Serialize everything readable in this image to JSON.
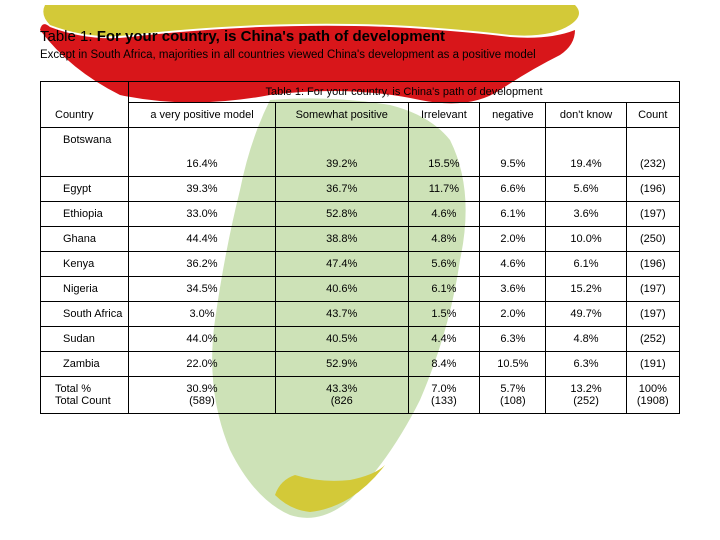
{
  "title_prefix": "Table 1:",
  "title_main": "For your country, is China's path of development",
  "subtitle": "Except in South Africa, majorities in all countries viewed China's development as a positive model",
  "table_caption": "Table 1: For your country, is China's path of development",
  "country_header": "Country",
  "columns": [
    "a very positive model",
    "Somewhat positive",
    "Irrelevant",
    "negative",
    "don't know",
    "Count"
  ],
  "rows": [
    {
      "country": "Botswana",
      "indent": true,
      "v": [
        "16.4%",
        "39.2%",
        "15.5%",
        "9.5%",
        "19.4%",
        "(232)"
      ]
    },
    {
      "country": "Egypt",
      "indent": true,
      "v": [
        "39.3%",
        "36.7%",
        "11.7%",
        "6.6%",
        "5.6%",
        "(196)"
      ]
    },
    {
      "country": "Ethiopia",
      "indent": true,
      "v": [
        "33.0%",
        "52.8%",
        "4.6%",
        "6.1%",
        "3.6%",
        "(197)"
      ]
    },
    {
      "country": "Ghana",
      "indent": true,
      "v": [
        "44.4%",
        "38.8%",
        "4.8%",
        "2.0%",
        "10.0%",
        "(250)"
      ]
    },
    {
      "country": "Kenya",
      "indent": true,
      "v": [
        "36.2%",
        "47.4%",
        "5.6%",
        "4.6%",
        "6.1%",
        "(196)"
      ]
    },
    {
      "country": "Nigeria",
      "indent": true,
      "v": [
        "34.5%",
        "40.6%",
        "6.1%",
        "3.6%",
        "15.2%",
        "(197)"
      ]
    },
    {
      "country": "South Africa",
      "indent": true,
      "v": [
        "3.0%",
        "43.7%",
        "1.5%",
        "2.0%",
        "49.7%",
        "(197)"
      ]
    },
    {
      "country": "Sudan",
      "indent": true,
      "v": [
        "44.0%",
        "40.5%",
        "4.4%",
        "6.3%",
        "4.8%",
        "(252)"
      ]
    },
    {
      "country": "Zambia",
      "indent": true,
      "v": [
        "22.0%",
        "52.9%",
        "8.4%",
        "10.5%",
        "6.3%",
        "(191)"
      ]
    }
  ],
  "total_label1": "Total %",
  "total_label2": "Total Count",
  "totals_pct": [
    "30.9%",
    "43.3%",
    "7.0%",
    "5.7%",
    "13.2%",
    "100%"
  ],
  "totals_count": [
    "(589)",
    "(826",
    "(133)",
    "(108)",
    "(252)",
    "(1908)"
  ]
}
